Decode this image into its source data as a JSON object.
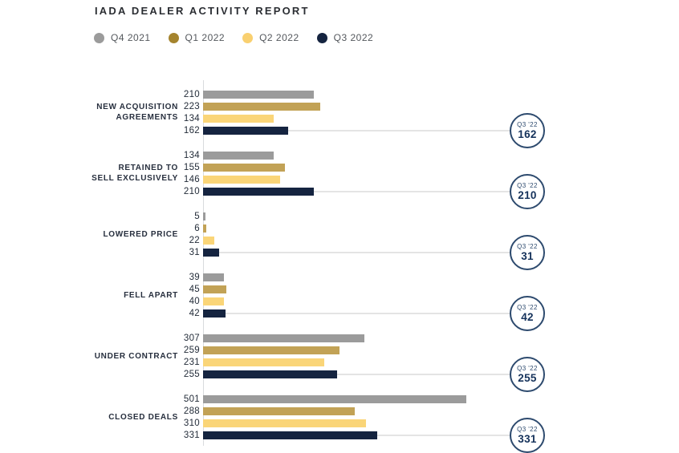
{
  "title": "IADA DEALER ACTIVITY REPORT",
  "legend": {
    "items": [
      {
        "label": "Q4 2021",
        "color": "#9B9B9B"
      },
      {
        "label": "Q1 2022",
        "color": "#A5842E"
      },
      {
        "label": "Q2 2022",
        "color": "#F9D070"
      },
      {
        "label": "Q3 2022",
        "color": "#152440"
      }
    ]
  },
  "colors": {
    "background": "#FFFFFF",
    "title_text": "#2B2E33",
    "legend_text": "#54585D",
    "category_text": "#272F3E",
    "value_text": "#232C39",
    "axis_line": "#D9DBDE",
    "connector_line": "#E4E4E4",
    "badge_border": "#2D4A6E",
    "badge_value_text": "#15325B",
    "bar_gray": "#9B9B9B",
    "bar_dark_gold": "#C2A256",
    "bar_light_gold": "#FAD578",
    "bar_navy": "#152440"
  },
  "chart_data": {
    "type": "bar",
    "orientation": "horizontal",
    "title": "IADA DEALER ACTIVITY REPORT",
    "grid": false,
    "legend_position": "top",
    "xlim": [
      0,
      600
    ],
    "series_names": [
      "Q4 2021",
      "Q1 2022",
      "Q2 2022",
      "Q3 2022"
    ],
    "bar_colors": [
      "#9B9B9B",
      "#C2A256",
      "#FAD578",
      "#152440"
    ],
    "categories": [
      "NEW ACQUISITION AGREEMENTS",
      "RETAINED TO SELL EXCLUSIVELY",
      "LOWERED PRICE",
      "FELL APART",
      "UNDER CONTRACT",
      "CLOSED DEALS"
    ],
    "groups": [
      {
        "category_lines": [
          "NEW ACQUISITION",
          "AGREEMENTS"
        ],
        "values": [
          210,
          223,
          134,
          162
        ],
        "badge": {
          "label": "Q3 '22",
          "value": "162"
        }
      },
      {
        "category_lines": [
          "RETAINED TO",
          "SELL EXCLUSIVELY"
        ],
        "values": [
          134,
          155,
          146,
          210
        ],
        "badge": {
          "label": "Q3 '22",
          "value": "210"
        }
      },
      {
        "category_lines": [
          "LOWERED PRICE"
        ],
        "values": [
          5,
          6,
          22,
          31
        ],
        "badge": {
          "label": "Q3 '22",
          "value": "31"
        }
      },
      {
        "category_lines": [
          "FELL APART"
        ],
        "values": [
          39,
          45,
          40,
          42
        ],
        "badge": {
          "label": "Q3 '22",
          "value": "42"
        }
      },
      {
        "category_lines": [
          "UNDER CONTRACT"
        ],
        "values": [
          307,
          259,
          231,
          255
        ],
        "badge": {
          "label": "Q3 '22",
          "value": "255"
        }
      },
      {
        "category_lines": [
          "CLOSED DEALS"
        ],
        "values": [
          501,
          288,
          310,
          331
        ],
        "badge": {
          "label": "Q3 '22",
          "value": "331"
        }
      }
    ]
  }
}
